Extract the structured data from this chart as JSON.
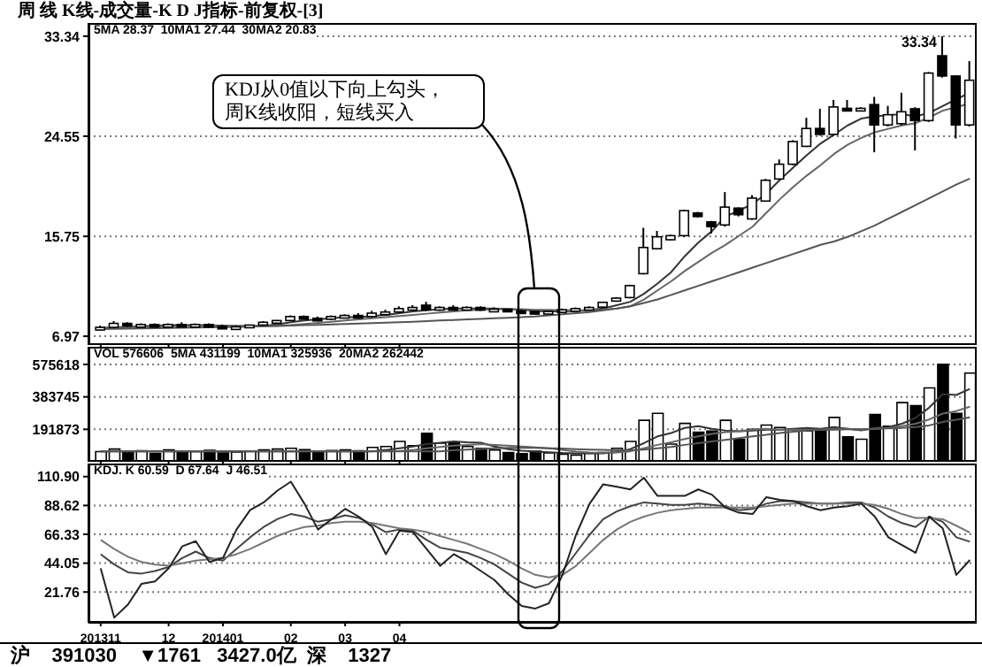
{
  "chart_data": [
    {
      "type": "candlestick",
      "title": "周 线 K线-成交量-K D J指标-前复权-[3]",
      "subtitle": "5MA 28.37  10MA1 27.44  30MA2 20.83",
      "color": "#000000",
      "categories": [
        "201311",
        null,
        null,
        null,
        null,
        "12",
        null,
        null,
        null,
        "201401",
        null,
        null,
        null,
        null,
        "02",
        null,
        null,
        null,
        "03",
        null,
        null,
        null,
        "04",
        null,
        null,
        null,
        null,
        null,
        null,
        null,
        null,
        null,
        null,
        null,
        null,
        null,
        null,
        null,
        null,
        null,
        null,
        null,
        null,
        null,
        null,
        null,
        null,
        null,
        null,
        null,
        null,
        null,
        null,
        null,
        null,
        null,
        null,
        null,
        null,
        null,
        null,
        null,
        null,
        null,
        null
      ],
      "ohlc": [
        [
          7.6,
          7.9,
          7.5,
          7.75
        ],
        [
          7.75,
          8.3,
          7.7,
          8.1
        ],
        [
          8.1,
          8.2,
          7.8,
          7.9
        ],
        [
          7.9,
          8.1,
          7.8,
          8.0
        ],
        [
          8.0,
          8.1,
          7.8,
          7.85
        ],
        [
          7.85,
          8.1,
          7.8,
          8.0
        ],
        [
          8.0,
          8.2,
          7.8,
          7.9
        ],
        [
          7.9,
          8.1,
          7.8,
          8.0
        ],
        [
          8.0,
          8.1,
          7.8,
          7.85
        ],
        [
          7.85,
          8.0,
          7.6,
          7.7
        ],
        [
          7.7,
          7.9,
          7.6,
          7.8
        ],
        [
          7.8,
          8.0,
          7.7,
          7.95
        ],
        [
          7.95,
          8.3,
          7.9,
          8.2
        ],
        [
          8.2,
          8.4,
          8.1,
          8.35
        ],
        [
          8.35,
          8.8,
          8.3,
          8.7
        ],
        [
          8.7,
          8.8,
          8.5,
          8.55
        ],
        [
          8.55,
          8.7,
          8.4,
          8.5
        ],
        [
          8.5,
          8.8,
          8.4,
          8.7
        ],
        [
          8.7,
          8.9,
          8.6,
          8.8
        ],
        [
          8.8,
          9.0,
          8.6,
          8.7
        ],
        [
          8.7,
          9.2,
          8.6,
          9.0
        ],
        [
          9.0,
          9.3,
          8.9,
          9.1
        ],
        [
          9.1,
          9.6,
          9.0,
          9.4
        ],
        [
          9.4,
          9.7,
          9.3,
          9.5
        ],
        [
          9.7,
          10.0,
          9.2,
          9.3
        ],
        [
          9.3,
          9.6,
          9.2,
          9.5
        ],
        [
          9.5,
          9.7,
          9.3,
          9.4
        ],
        [
          9.4,
          9.6,
          9.3,
          9.5
        ],
        [
          9.5,
          9.6,
          9.2,
          9.3
        ],
        [
          9.3,
          9.5,
          9.2,
          9.35
        ],
        [
          9.35,
          9.4,
          9.1,
          9.2
        ],
        [
          9.2,
          9.3,
          9.0,
          9.1
        ],
        [
          9.15,
          9.2,
          8.9,
          8.95
        ],
        [
          8.95,
          9.2,
          8.9,
          9.15
        ],
        [
          9.15,
          9.4,
          9.1,
          9.3
        ],
        [
          9.3,
          9.5,
          9.2,
          9.4
        ],
        [
          9.4,
          9.6,
          9.3,
          9.5
        ],
        [
          9.53,
          10.0,
          9.45,
          9.95
        ],
        [
          10.06,
          10.4,
          10.0,
          10.32
        ],
        [
          10.37,
          11.5,
          10.3,
          11.42
        ],
        [
          12.47,
          16.5,
          12.4,
          14.77
        ],
        [
          14.66,
          16.23,
          14.6,
          15.71
        ],
        [
          15.45,
          15.9,
          15.4,
          15.81
        ],
        [
          15.81,
          18.07,
          15.7,
          18.01
        ],
        [
          17.8,
          17.9,
          17.4,
          17.49
        ],
        [
          17.02,
          17.1,
          16.0,
          16.6
        ],
        [
          16.75,
          19.64,
          16.6,
          18.32
        ],
        [
          18.23,
          18.3,
          17.5,
          17.65
        ],
        [
          17.28,
          19.37,
          17.2,
          19.11
        ],
        [
          18.85,
          20.8,
          18.8,
          20.68
        ],
        [
          20.79,
          22.51,
          20.7,
          22.09
        ],
        [
          22.09,
          24.2,
          22.0,
          24.08
        ],
        [
          23.66,
          26.17,
          23.6,
          25.23
        ],
        [
          25.23,
          26.96,
          24.6,
          24.71
        ],
        [
          24.71,
          27.74,
          24.6,
          27.12
        ],
        [
          27.0,
          27.74,
          26.8,
          26.91
        ],
        [
          26.91,
          27.1,
          26.8,
          27.0
        ],
        [
          27.33,
          28.01,
          23.14,
          25.54
        ],
        [
          25.54,
          27.22,
          25.4,
          26.44
        ],
        [
          25.65,
          28.37,
          25.5,
          26.7
        ],
        [
          26.96,
          27.1,
          23.3,
          25.92
        ],
        [
          25.92,
          30.2,
          25.8,
          30.1
        ],
        [
          31.62,
          33.34,
          29.7,
          29.84
        ],
        [
          29.84,
          29.9,
          24.35,
          25.54
        ],
        [
          25.54,
          31.15,
          25.4,
          29.47
        ]
      ],
      "series": [
        {
          "type": "line",
          "color": "#333333",
          "values": [
            7.7,
            7.75,
            7.8,
            7.85,
            7.9,
            7.95,
            7.95,
            7.95,
            7.95,
            7.9,
            7.85,
            7.85,
            7.9,
            8.0,
            8.2,
            8.35,
            8.45,
            8.55,
            8.65,
            8.65,
            8.75,
            8.85,
            9.0,
            9.15,
            9.25,
            9.35,
            9.4,
            9.4,
            9.4,
            9.4,
            9.35,
            9.3,
            9.2,
            9.15,
            9.15,
            9.2,
            9.3,
            9.4,
            9.7,
            10.0,
            10.7,
            11.6,
            12.6,
            14.0,
            15.2,
            16.2,
            17.5,
            18.0,
            18.6,
            19.5,
            20.7,
            21.8,
            22.9,
            23.9,
            24.7,
            25.5,
            26.1,
            26.3,
            26.4,
            26.5,
            26.3,
            26.6,
            27.2,
            27.8,
            28.37
          ]
        },
        {
          "type": "line",
          "color": "#666666",
          "values": [
            7.7,
            7.72,
            7.75,
            7.78,
            7.8,
            7.83,
            7.85,
            7.88,
            7.9,
            7.9,
            7.9,
            7.88,
            7.88,
            7.9,
            7.95,
            8.05,
            8.15,
            8.25,
            8.35,
            8.45,
            8.55,
            8.65,
            8.75,
            8.85,
            8.95,
            9.05,
            9.15,
            9.25,
            9.3,
            9.35,
            9.35,
            9.35,
            9.3,
            9.3,
            9.25,
            9.25,
            9.25,
            9.3,
            9.4,
            9.6,
            10.2,
            11.0,
            11.8,
            12.7,
            13.5,
            14.3,
            15.0,
            15.8,
            16.6,
            17.8,
            19.0,
            20.1,
            21.1,
            22.0,
            23.0,
            23.8,
            24.4,
            24.9,
            25.2,
            25.5,
            25.7,
            26.2,
            26.8,
            27.1,
            27.44
          ]
        },
        {
          "type": "line",
          "color": "#555555",
          "values": [
            7.6,
            7.62,
            7.64,
            7.66,
            7.68,
            7.7,
            7.72,
            7.74,
            7.76,
            7.78,
            7.8,
            7.82,
            7.85,
            7.88,
            7.91,
            7.94,
            7.97,
            8.0,
            8.04,
            8.08,
            8.12,
            8.16,
            8.2,
            8.25,
            8.3,
            8.35,
            8.4,
            8.45,
            8.5,
            8.55,
            8.6,
            8.65,
            8.7,
            8.8,
            8.9,
            9.0,
            9.1,
            9.25,
            9.4,
            9.6,
            9.9,
            10.2,
            10.6,
            11.0,
            11.4,
            11.8,
            12.2,
            12.6,
            13.0,
            13.4,
            13.8,
            14.2,
            14.6,
            15.0,
            15.3,
            15.7,
            16.2,
            16.7,
            17.3,
            17.9,
            18.5,
            19.1,
            19.7,
            20.3,
            20.83
          ]
        }
      ],
      "ylim": [
        6.2,
        34.5
      ],
      "yticks": [
        6.97,
        15.75,
        24.55,
        33.34
      ],
      "grid": "y",
      "tick_labels": "y",
      "annotations": [
        "KDJ从0值以下向上勾头，周K线收阳，短线买入",
        "33.34"
      ]
    },
    {
      "type": "bar",
      "subtitle": "VOL 576606  5MA 431199  10MA1 325936  20MA2 262442",
      "color": "#000000",
      "categories": [
        "201311",
        null,
        null,
        null,
        null,
        "12",
        null,
        null,
        null,
        "201401",
        null,
        null,
        null,
        null,
        "02",
        null,
        null,
        null,
        "03",
        null,
        null,
        null,
        "04",
        null,
        null,
        null,
        null,
        null,
        null,
        null,
        null,
        null,
        null,
        null,
        null,
        null,
        null,
        null,
        null,
        null,
        null,
        null,
        null,
        null,
        null,
        null,
        null,
        null,
        null,
        null,
        null,
        null,
        null,
        null,
        null,
        null,
        null,
        null,
        null,
        null,
        null,
        null,
        null,
        null,
        null
      ],
      "values": [
        60000,
        75000,
        55000,
        65000,
        50000,
        70000,
        55000,
        60000,
        68000,
        52000,
        58000,
        62000,
        70000,
        75000,
        80000,
        72000,
        60000,
        66000,
        70000,
        65000,
        85000,
        90000,
        120000,
        95000,
        168000,
        110000,
        112000,
        90000,
        80000,
        70000,
        55000,
        48000,
        62000,
        52000,
        45000,
        40000,
        50000,
        55000,
        80000,
        120000,
        245000,
        286000,
        105000,
        227000,
        175000,
        182000,
        245000,
        133000,
        192000,
        217000,
        203000,
        192000,
        182000,
        192000,
        262000,
        147000,
        133000,
        280000,
        210000,
        350000,
        332000,
        437000,
        576606,
        286000,
        524000
      ],
      "colors": [
        "#ffffff",
        "#ffffff",
        "#000000",
        "#ffffff",
        "#000000",
        "#ffffff",
        "#000000",
        "#ffffff",
        "#000000",
        "#000000",
        "#ffffff",
        "#ffffff",
        "#ffffff",
        "#ffffff",
        "#ffffff",
        "#000000",
        "#000000",
        "#ffffff",
        "#ffffff",
        "#000000",
        "#ffffff",
        "#ffffff",
        "#ffffff",
        "#ffffff",
        "#000000",
        "#ffffff",
        "#000000",
        "#ffffff",
        "#000000",
        "#ffffff",
        "#000000",
        "#000000",
        "#000000",
        "#ffffff",
        "#ffffff",
        "#ffffff",
        "#ffffff",
        "#ffffff",
        "#ffffff",
        "#ffffff",
        "#ffffff",
        "#ffffff",
        "#ffffff",
        "#ffffff",
        "#000000",
        "#000000",
        "#ffffff",
        "#000000",
        "#ffffff",
        "#ffffff",
        "#ffffff",
        "#ffffff",
        "#ffffff",
        "#000000",
        "#ffffff",
        "#000000",
        "#ffffff",
        "#000000",
        "#ffffff",
        "#ffffff",
        "#000000",
        "#ffffff",
        "#000000",
        "#000000",
        "#ffffff"
      ],
      "series": [
        {
          "type": "line",
          "color": "#333333",
          "values": [
            62000,
            62000,
            62000,
            62000,
            62000,
            62000,
            62000,
            62000,
            62000,
            62000,
            62000,
            62000,
            62000,
            62000,
            62000,
            62000,
            62000,
            62000,
            62000,
            62000,
            62000,
            70000,
            80000,
            90000,
            105000,
            112000,
            120000,
            115000,
            112000,
            90000,
            75000,
            66000,
            60000,
            56000,
            52000,
            50000,
            50000,
            50000,
            58000,
            75000,
            110000,
            150000,
            170000,
            200000,
            210000,
            195000,
            185000,
            180000,
            185000,
            190000,
            190000,
            195000,
            200000,
            195000,
            205000,
            195000,
            185000,
            200000,
            205000,
            225000,
            260000,
            320000,
            400000,
            395000,
            431199
          ]
        },
        {
          "type": "line",
          "color": "#666666",
          "values": [
            63000,
            63000,
            63000,
            63000,
            63000,
            63000,
            63000,
            63000,
            63000,
            63000,
            63000,
            63000,
            63000,
            63000,
            63000,
            63000,
            63000,
            63000,
            63000,
            63000,
            63000,
            63000,
            63000,
            70000,
            80000,
            88000,
            95000,
            100000,
            105000,
            100000,
            95000,
            90000,
            85000,
            80000,
            70000,
            60000,
            55000,
            53000,
            55000,
            62000,
            80000,
            100000,
            115000,
            135000,
            150000,
            165000,
            175000,
            180000,
            190000,
            195000,
            190000,
            188000,
            190000,
            190000,
            195000,
            195000,
            190000,
            195000,
            200000,
            210000,
            225000,
            250000,
            285000,
            300000,
            325936
          ]
        },
        {
          "type": "line",
          "color": "#555555",
          "values": [
            62000,
            62000,
            62000,
            62000,
            62000,
            62000,
            62000,
            62000,
            62000,
            62000,
            62000,
            62000,
            62000,
            62000,
            62000,
            62000,
            62000,
            62000,
            62000,
            62000,
            62000,
            62000,
            62000,
            62000,
            62000,
            62000,
            68000,
            72000,
            76000,
            80000,
            82000,
            83000,
            82000,
            80000,
            78000,
            75000,
            72000,
            70000,
            68000,
            68000,
            72000,
            80000,
            88000,
            100000,
            110000,
            120000,
            130000,
            140000,
            150000,
            160000,
            170000,
            178000,
            185000,
            188000,
            190000,
            192000,
            192000,
            195000,
            197000,
            200000,
            205000,
            215000,
            235000,
            248000,
            262442
          ]
        }
      ],
      "ylim": [
        0,
        680000
      ],
      "yticks": [
        191873,
        383745,
        575618
      ],
      "grid": "y",
      "tick_labels": "y"
    },
    {
      "type": "line",
      "subtitle": "KDJ. K 60.59  D 67.64  J 46.51",
      "categories": [
        "201311",
        null,
        null,
        null,
        null,
        "12",
        null,
        null,
        null,
        "201401",
        null,
        null,
        null,
        null,
        "02",
        null,
        null,
        null,
        "03",
        null,
        null,
        null,
        "04",
        null,
        null,
        null,
        null,
        null,
        null,
        null,
        null,
        null,
        null,
        null,
        null,
        null,
        null,
        null,
        null,
        null,
        null,
        null,
        null,
        null,
        null,
        null,
        null,
        null,
        null,
        null,
        null,
        null,
        null,
        null,
        null,
        null,
        null,
        null,
        null,
        null,
        null,
        null,
        null,
        null,
        null
      ],
      "series": [
        {
          "color": "#444444",
          "values": [
            51,
            43,
            37,
            36,
            38,
            41,
            48,
            53,
            48,
            46,
            55,
            64,
            72,
            78,
            82,
            80,
            76,
            78,
            81,
            79,
            74,
            68,
            70,
            69,
            62,
            56,
            54,
            52,
            48,
            43,
            36,
            29,
            25,
            28,
            38,
            52,
            66,
            78,
            84,
            88,
            91,
            90,
            89,
            89,
            90,
            89,
            88,
            85,
            86,
            90,
            92,
            92,
            91,
            90,
            90,
            91,
            91,
            87,
            80,
            75,
            72,
            80,
            76,
            64,
            60.59
          ]
        },
        {
          "color": "#777777",
          "values": [
            62,
            55,
            49,
            45,
            43,
            42,
            44,
            46,
            47,
            48,
            51,
            55,
            60,
            65,
            69,
            72,
            73,
            75,
            76,
            76,
            75,
            73,
            71,
            70,
            68,
            65,
            62,
            59,
            55,
            51,
            46,
            40,
            35,
            33,
            35,
            42,
            52,
            62,
            70,
            76,
            80,
            83,
            85,
            86,
            87,
            87,
            87,
            87,
            87,
            88,
            89,
            90,
            90,
            90,
            90,
            90,
            90,
            89,
            86,
            82,
            79,
            79,
            78,
            73,
            67.64
          ]
        },
        {
          "color": "#222222",
          "values": [
            40,
            2,
            12,
            28,
            30,
            40,
            57,
            61,
            45,
            48,
            70,
            85,
            91,
            100,
            107,
            90,
            70,
            78,
            86,
            80,
            72,
            51,
            69,
            68,
            55,
            42,
            51,
            45,
            38,
            31,
            20,
            11,
            9,
            13,
            35,
            66,
            90,
            105,
            103,
            101,
            110,
            96,
            96,
            96,
            101,
            97,
            87,
            83,
            82,
            95,
            93,
            92,
            88,
            85,
            87,
            88,
            90,
            80,
            64,
            58,
            52,
            80,
            71,
            35,
            46.51
          ]
        }
      ],
      "ylim": [
        -2,
        121
      ],
      "yticks": [
        {
          "value": 21.76,
          "label": "21.76"
        },
        44.05,
        66.33,
        88.62,
        {
          "value": 110.9,
          "label": "110.90"
        }
      ],
      "grid": "y",
      "annotations": [
        "沪    391030    ▼1761   3427.0亿  深    1327"
      ]
    }
  ]
}
